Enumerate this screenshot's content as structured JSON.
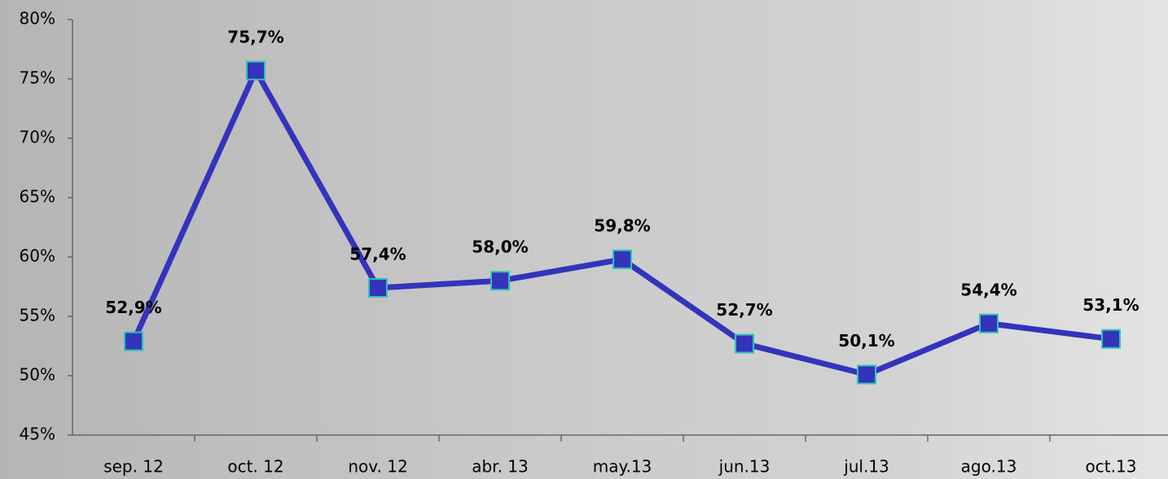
{
  "chart_data": {
    "type": "line",
    "categories": [
      "sep. 12",
      "oct. 12",
      "nov. 12",
      "abr. 13",
      "may.13",
      "jun.13",
      "jul.13",
      "ago.13",
      "oct.13"
    ],
    "values": [
      52.9,
      75.7,
      57.4,
      58.0,
      59.8,
      52.7,
      50.1,
      54.4,
      53.1
    ],
    "value_labels": [
      "52,9%",
      "75,7%",
      "57,4%",
      "58,0%",
      "59,8%",
      "52,7%",
      "50,1%",
      "54,4%",
      "53,1%"
    ],
    "color": "#3333bb",
    "marker_edge_color": "#2ec4b6",
    "ylim": [
      45,
      80
    ],
    "yticks": [
      {
        "value": 45,
        "label": "45%"
      },
      {
        "value": 50,
        "label": "50%"
      },
      {
        "value": 55,
        "label": "55%"
      },
      {
        "value": 60,
        "label": "60%"
      },
      {
        "value": 65,
        "label": "65%"
      },
      {
        "value": 70,
        "label": "70%"
      },
      {
        "value": 75,
        "label": "75%"
      },
      {
        "value": 80,
        "label": "80%"
      }
    ]
  }
}
